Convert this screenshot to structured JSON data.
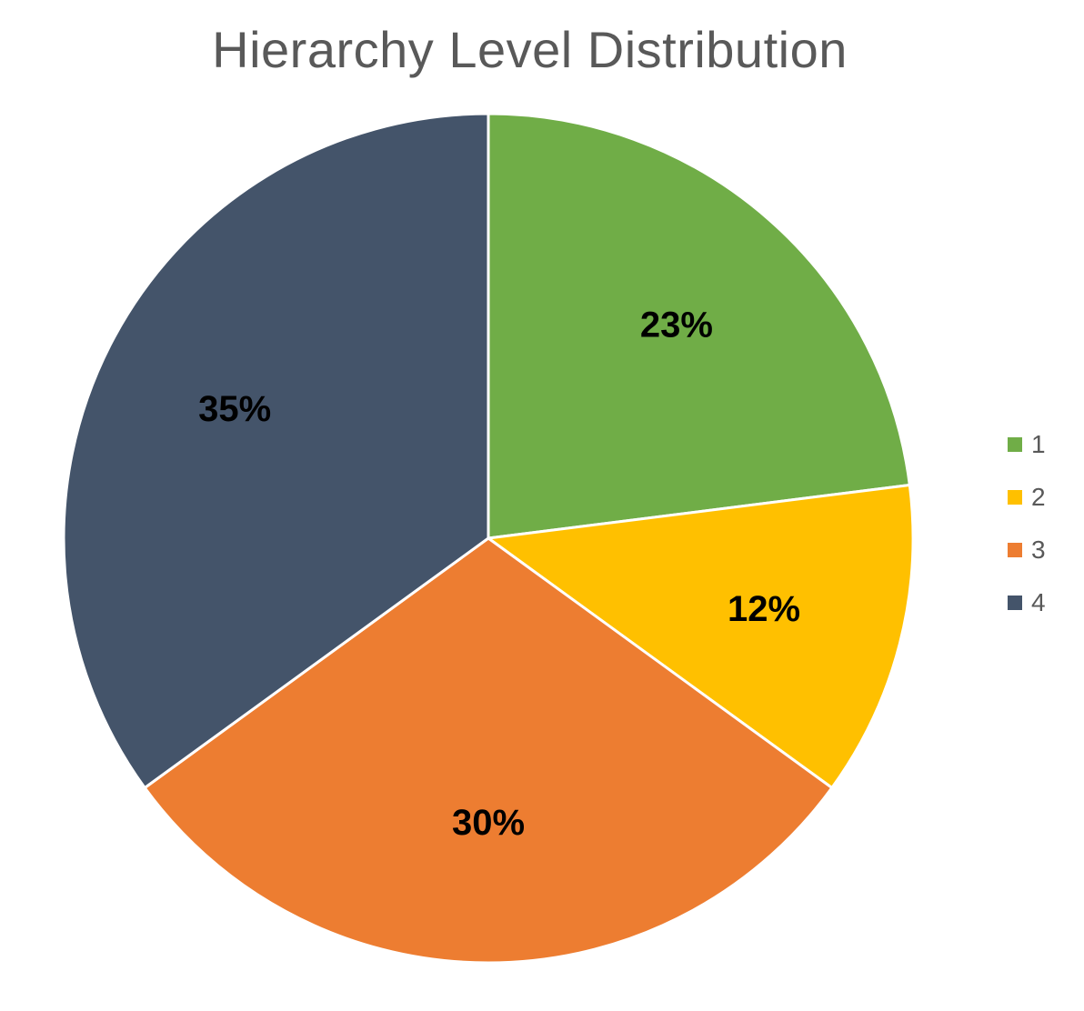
{
  "chart_data": {
    "type": "pie",
    "title": "Hierarchy Level Distribution",
    "legend_position": "right",
    "slices": [
      {
        "label": "1",
        "value": 23,
        "data_label": "23%",
        "color": "#70AD47"
      },
      {
        "label": "2",
        "value": 12,
        "data_label": "12%",
        "color": "#FFC000"
      },
      {
        "label": "3",
        "value": 30,
        "data_label": "30%",
        "color": "#ED7D31"
      },
      {
        "label": "4",
        "value": 35,
        "data_label": "35%",
        "color": "#44546A"
      }
    ]
  }
}
